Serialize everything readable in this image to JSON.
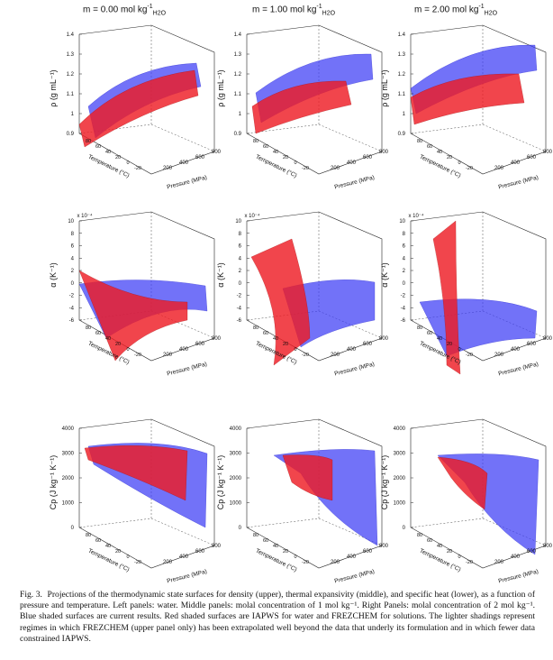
{
  "figure": {
    "column_titles": [
      "m = 0.00 mol kg",
      "m = 1.00 mol kg",
      "m = 2.00 mol kg"
    ],
    "title_superscript": "-1",
    "title_subscript": "H2O",
    "rows": [
      {
        "ylabel": "ρ (g mL⁻¹)",
        "zticks": [
          "0.9",
          "1",
          "1.1",
          "1.2",
          "1.3",
          "1.4"
        ],
        "multiplier": ""
      },
      {
        "ylabel": "α (K⁻¹)",
        "zticks": [
          "-6",
          "-4",
          "-2",
          "0",
          "2",
          "4",
          "6",
          "8",
          "10"
        ],
        "multiplier": "x 10⁻⁴"
      },
      {
        "ylabel": "Cp (J kg⁻¹ K⁻¹)",
        "zticks": [
          "0",
          "1000",
          "2000",
          "3000",
          "4000"
        ],
        "multiplier": ""
      }
    ],
    "xlabel": "Pressure (MPa)",
    "xticks": [
      "200",
      "400",
      "600",
      "800"
    ],
    "tlabel": "Temperature (°C)",
    "tticks": [
      "80",
      "60",
      "40",
      "20",
      "0",
      "-20"
    ],
    "colors": {
      "blue_surface": "#3b3bf5",
      "red_surface": "#ee1c24",
      "overlap": "#8a1a6a",
      "axis": "#222222"
    }
  },
  "caption": {
    "label": "Fig. 3.",
    "text": "Projections of the thermodynamic state surfaces for density (upper), thermal expansivity (middle), and specific heat (lower), as a function of pressure and temperature. Left panels: water. Middle panels: molal concentration of 1 mol kg⁻¹. Right Panels: molal concentration of 2 mol kg⁻¹. Blue shaded surfaces are current results. Red shaded surfaces are IAPWS for water and FREZCHEM for solutions. The lighter shadings represent regimes in which FREZCHEM (upper panel only) has been extrapolated well beyond the data that underly its formulation and in which fewer data constrained IAPWS."
  }
}
